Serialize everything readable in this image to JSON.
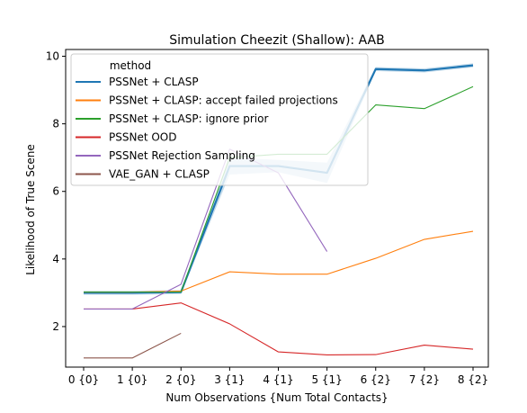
{
  "chart_data": {
    "type": "line",
    "title": "Simulation Cheezit (Shallow): AAB",
    "xlabel": "Num Observations {Num Total Contacts}",
    "ylabel": "Likelihood of True Scene",
    "categories": [
      "0 {0}",
      "1 {0}",
      "2 {0}",
      "3 {1}",
      "4 {1}",
      "5 {1}",
      "6 {2}",
      "7 {2}",
      "8 {2}"
    ],
    "ylim": [
      0.8,
      10.2
    ],
    "yticks": [
      2,
      4,
      6,
      8,
      10
    ],
    "grid": false,
    "legend": {
      "title": "method",
      "position": "top-left"
    },
    "series": [
      {
        "name": "PSSNet + CLASP",
        "color": "#1f77b4",
        "values": [
          3.0,
          3.0,
          3.02,
          6.75,
          6.75,
          6.55,
          9.62,
          9.58,
          9.73
        ],
        "band": [
          0.06,
          0.06,
          0.06,
          0.25,
          0.18,
          0.3,
          0.06,
          0.06,
          0.06
        ]
      },
      {
        "name": "PSSNet + CLASP: accept failed projections",
        "color": "#ff7f0e",
        "values": [
          3.02,
          3.02,
          3.05,
          3.62,
          3.55,
          3.55,
          4.02,
          4.58,
          4.82
        ]
      },
      {
        "name": "PSSNet + CLASP: ignore prior",
        "color": "#2ca02c",
        "values": [
          3.02,
          3.02,
          3.02,
          7.0,
          7.1,
          7.1,
          8.56,
          8.45,
          9.1
        ]
      },
      {
        "name": "PSSNet OOD",
        "color": "#d62728",
        "values": [
          2.52,
          2.52,
          2.7,
          2.08,
          1.25,
          1.16,
          1.17,
          1.45,
          1.33
        ]
      },
      {
        "name": "PSSNet Rejection Sampling",
        "color": "#9467bd",
        "values": [
          2.52,
          2.52,
          3.25,
          7.25,
          6.55,
          4.22,
          null,
          null,
          null
        ]
      },
      {
        "name": "VAE_GAN + CLASP",
        "color": "#8c564b",
        "values": [
          1.07,
          1.07,
          1.8,
          null,
          null,
          null,
          null,
          null,
          null
        ]
      }
    ]
  }
}
